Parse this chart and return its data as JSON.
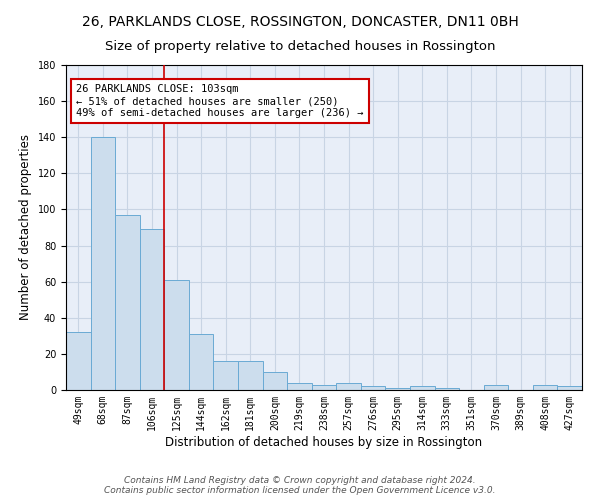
{
  "title": "26, PARKLANDS CLOSE, ROSSINGTON, DONCASTER, DN11 0BH",
  "subtitle": "Size of property relative to detached houses in Rossington",
  "xlabel": "Distribution of detached houses by size in Rossington",
  "ylabel": "Number of detached properties",
  "bar_labels": [
    "49sqm",
    "68sqm",
    "87sqm",
    "106sqm",
    "125sqm",
    "144sqm",
    "162sqm",
    "181sqm",
    "200sqm",
    "219sqm",
    "238sqm",
    "257sqm",
    "276sqm",
    "295sqm",
    "314sqm",
    "333sqm",
    "351sqm",
    "370sqm",
    "389sqm",
    "408sqm",
    "427sqm"
  ],
  "bar_values": [
    32,
    140,
    97,
    89,
    61,
    31,
    16,
    16,
    10,
    4,
    3,
    4,
    2,
    1,
    2,
    1,
    0,
    3,
    0,
    3,
    2
  ],
  "bar_color": "#ccdded",
  "bar_edge_color": "#6aaad4",
  "vline_x": 3.5,
  "vline_color": "#cc0000",
  "annotation_text": "26 PARKLANDS CLOSE: 103sqm\n← 51% of detached houses are smaller (250)\n49% of semi-detached houses are larger (236) →",
  "annotation_box_color": "white",
  "annotation_box_edge_color": "#cc0000",
  "ylim": [
    0,
    180
  ],
  "yticks": [
    0,
    20,
    40,
    60,
    80,
    100,
    120,
    140,
    160,
    180
  ],
  "grid_color": "#c8d4e4",
  "background_color": "#e8eef8",
  "footer_text": "Contains HM Land Registry data © Crown copyright and database right 2024.\nContains public sector information licensed under the Open Government Licence v3.0.",
  "title_fontsize": 10,
  "subtitle_fontsize": 9.5,
  "xlabel_fontsize": 8.5,
  "ylabel_fontsize": 8.5,
  "tick_fontsize": 7,
  "annot_fontsize": 7.5
}
